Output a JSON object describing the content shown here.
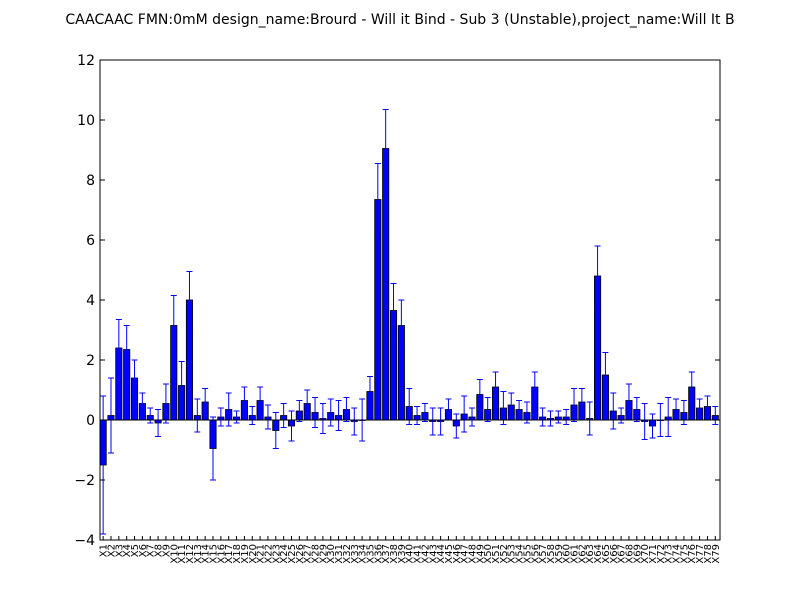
{
  "chart_data": {
    "type": "bar",
    "title": "CAACAAC  FMN:0mM  design_name:Brourd - Will it Bind - Sub 3 (Unstable),project_name:Will It B",
    "xlabel": "",
    "ylabel": "",
    "ylim": [
      -4,
      12
    ],
    "yticks": [
      -4,
      -2,
      0,
      2,
      4,
      6,
      8,
      10,
      12
    ],
    "ytick_labels": [
      "−4",
      "−2",
      "0",
      "2",
      "4",
      "6",
      "8",
      "10",
      "12"
    ],
    "grid": false,
    "bar_color": "#0000ff",
    "error_color": "#0000ff",
    "categories": [
      "X1",
      "X2",
      "X3",
      "X4",
      "X5",
      "X6",
      "X7",
      "X8",
      "X9",
      "X10",
      "X11",
      "X12",
      "X13",
      "X14",
      "X15",
      "X16",
      "X17",
      "X18",
      "X19",
      "X20",
      "X21",
      "X22",
      "X23",
      "X24",
      "X25",
      "X26",
      "X27",
      "X28",
      "X29",
      "X30",
      "X31",
      "X32",
      "X33",
      "X34",
      "X35",
      "X36",
      "X37",
      "X38",
      "X39",
      "X40",
      "X41",
      "X42",
      "X43",
      "X44",
      "X45",
      "X46",
      "X47",
      "X48",
      "X49",
      "X50",
      "X51",
      "X52",
      "X53",
      "X54",
      "X55",
      "X56",
      "X57",
      "X58",
      "X59",
      "X60",
      "X61",
      "X62",
      "X63",
      "X64",
      "X65",
      "X66",
      "X67",
      "X68",
      "X69",
      "X70",
      "X71",
      "X72",
      "X73",
      "X74",
      "X75",
      "X76",
      "X77",
      "X78",
      "X79"
    ],
    "values": [
      -1.5,
      0.15,
      2.4,
      2.35,
      1.4,
      0.55,
      0.15,
      -0.1,
      0.55,
      3.15,
      1.15,
      4.0,
      0.15,
      0.6,
      -0.95,
      0.1,
      0.35,
      0.1,
      0.65,
      0.15,
      0.65,
      0.1,
      -0.35,
      0.15,
      -0.2,
      0.3,
      0.55,
      0.25,
      0.05,
      0.25,
      0.15,
      0.35,
      -0.05,
      0.0,
      0.95,
      7.35,
      9.05,
      3.65,
      3.15,
      0.45,
      0.15,
      0.25,
      -0.05,
      -0.05,
      0.35,
      -0.2,
      0.2,
      0.1,
      0.85,
      0.35,
      1.1,
      0.4,
      0.5,
      0.35,
      0.25,
      1.1,
      0.1,
      0.05,
      0.1,
      0.1,
      0.5,
      0.6,
      0.05,
      4.8,
      1.5,
      0.3,
      0.15,
      0.65,
      0.35,
      -0.05,
      -0.2,
      0.0,
      0.1,
      0.35,
      0.25,
      1.1,
      0.4,
      0.45,
      0.15
    ],
    "errors": [
      2.3,
      1.25,
      0.95,
      0.8,
      0.6,
      0.35,
      0.25,
      0.45,
      0.65,
      1.0,
      0.8,
      0.95,
      0.55,
      0.45,
      1.05,
      0.3,
      0.55,
      0.2,
      0.45,
      0.3,
      0.45,
      0.4,
      0.6,
      0.4,
      0.5,
      0.35,
      0.45,
      0.5,
      0.5,
      0.45,
      0.5,
      0.4,
      0.45,
      0.7,
      0.5,
      1.2,
      1.3,
      0.9,
      0.85,
      0.6,
      0.3,
      0.3,
      0.45,
      0.45,
      0.35,
      0.4,
      0.6,
      0.3,
      0.5,
      0.4,
      0.5,
      0.55,
      0.4,
      0.3,
      0.35,
      0.5,
      0.3,
      0.25,
      0.2,
      0.25,
      0.55,
      0.45,
      0.55,
      1.0,
      0.75,
      0.6,
      0.25,
      0.55,
      0.4,
      0.6,
      0.4,
      0.55,
      0.65,
      0.35,
      0.4,
      0.5,
      0.3,
      0.35,
      0.3
    ]
  }
}
